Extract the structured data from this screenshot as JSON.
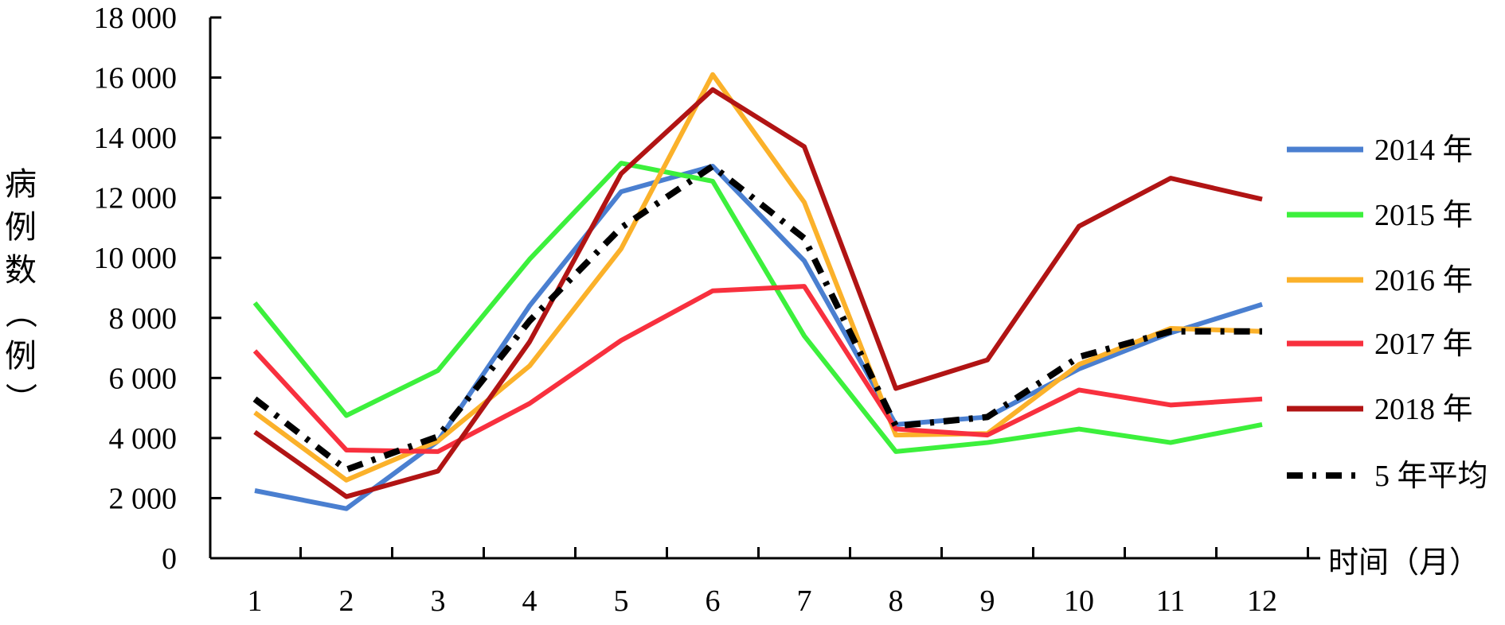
{
  "chart_data": {
    "type": "line",
    "title": "",
    "xlabel": "时间（月）",
    "ylabel": "病例数（例）",
    "categories": [
      "1",
      "2",
      "3",
      "4",
      "5",
      "6",
      "7",
      "8",
      "9",
      "10",
      "11",
      "12"
    ],
    "ylim": [
      0,
      18000
    ],
    "yticks": [
      0,
      2000,
      4000,
      6000,
      8000,
      10000,
      12000,
      14000,
      16000,
      18000
    ],
    "ytick_labels": [
      "0",
      "2 000",
      "4 000",
      "6 000",
      "8 000",
      "10 000",
      "12 000",
      "14 000",
      "16 000",
      "18 000"
    ],
    "grid": false,
    "legend_position": "right",
    "series": [
      {
        "name": "2014 年",
        "color": "#4a7fd0",
        "dash": "solid",
        "values": [
          2250,
          1650,
          3900,
          8400,
          12200,
          13050,
          9900,
          4450,
          4700,
          6300,
          7500,
          8450
        ]
      },
      {
        "name": "2015 年",
        "color": "#3cf03c",
        "dash": "solid",
        "values": [
          8500,
          4750,
          6250,
          9950,
          13150,
          12550,
          7400,
          3550,
          3850,
          4300,
          3850,
          4450
        ]
      },
      {
        "name": "2016 年",
        "color": "#fbb12a",
        "dash": "solid",
        "values": [
          4850,
          2600,
          3900,
          6400,
          10300,
          16100,
          11850,
          4100,
          4150,
          6450,
          7650,
          7550
        ]
      },
      {
        "name": "2017 年",
        "color": "#f8303e",
        "dash": "solid",
        "values": [
          6900,
          3600,
          3550,
          5150,
          7250,
          8900,
          9050,
          4300,
          4100,
          5600,
          5100,
          5300
        ]
      },
      {
        "name": "2018 年",
        "color": "#b11414",
        "dash": "solid",
        "values": [
          4200,
          2050,
          2900,
          7200,
          12800,
          15600,
          13700,
          5650,
          6600,
          11050,
          12650,
          11950
        ]
      },
      {
        "name": "5 年平均",
        "color": "#000000",
        "dash": "dashdot",
        "values": [
          5300,
          2950,
          4050,
          7900,
          11000,
          13050,
          10650,
          4400,
          4700,
          6700,
          7550,
          7550
        ]
      }
    ]
  }
}
